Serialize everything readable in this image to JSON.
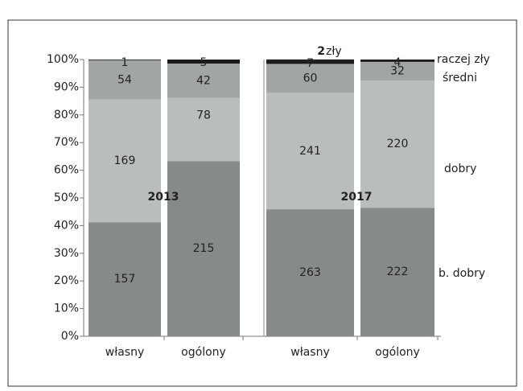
{
  "chart_data": {
    "type": "stacked_percent_bar",
    "categories": [
      "własny",
      "ogólony",
      "własny",
      "ogólony"
    ],
    "groups": [
      "2013",
      "2017"
    ],
    "series": [
      {
        "name": "b. dobry",
        "color": "#878a8b",
        "values": [
          157,
          215,
          263,
          222
        ]
      },
      {
        "name": "dobry",
        "color": "#babdbe",
        "values": [
          169,
          78,
          241,
          220
        ]
      },
      {
        "name": "średni",
        "color": "#a2a5a6",
        "values": [
          54,
          42,
          60,
          32
        ]
      },
      {
        "name": "raczej zły",
        "color": "#1a1a1a",
        "values": [
          1,
          5,
          7,
          4
        ]
      },
      {
        "name": "zły",
        "color": "#000000",
        "values": [
          null,
          null,
          2,
          null
        ]
      }
    ],
    "ylim": [
      0,
      100
    ],
    "yticks": [
      {
        "value": 0,
        "label": "0%"
      },
      {
        "value": 10,
        "label": "10%"
      },
      {
        "value": 20,
        "label": "20%"
      },
      {
        "value": 30,
        "label": "30%"
      },
      {
        "value": 40,
        "label": "40%"
      },
      {
        "value": 50,
        "label": "50%"
      },
      {
        "value": 60,
        "label": "60%"
      },
      {
        "value": 70,
        "label": "70%"
      },
      {
        "value": 80,
        "label": "80%"
      },
      {
        "value": 90,
        "label": "90%"
      },
      {
        "value": 100,
        "label": "100%"
      }
    ]
  }
}
